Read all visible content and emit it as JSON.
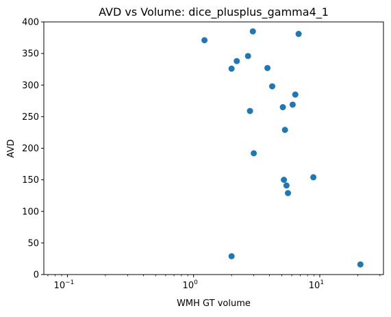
{
  "chart_data": {
    "type": "scatter",
    "title": "AVD vs Volume: dice_plusplus_gamma4_1",
    "xlabel": "WMH GT volume",
    "ylabel": "AVD",
    "xscale": "log",
    "xlim": [
      0.065,
      32
    ],
    "ylim": [
      0,
      400
    ],
    "xticks": [
      {
        "value": 0.1,
        "base": "10",
        "exp": "−1"
      },
      {
        "value": 1,
        "base": "10",
        "exp": "0"
      },
      {
        "value": 10,
        "base": "10",
        "exp": "1"
      }
    ],
    "yticks": [
      0,
      50,
      100,
      150,
      200,
      250,
      300,
      350,
      400
    ],
    "grid": false,
    "marker_color": "#1f77b4",
    "points": [
      {
        "x": 1.22,
        "y": 371
      },
      {
        "x": 2.0,
        "y": 326
      },
      {
        "x": 2.2,
        "y": 338
      },
      {
        "x": 2.0,
        "y": 29
      },
      {
        "x": 2.7,
        "y": 346
      },
      {
        "x": 2.8,
        "y": 259
      },
      {
        "x": 2.95,
        "y": 385
      },
      {
        "x": 3.0,
        "y": 192
      },
      {
        "x": 3.85,
        "y": 327
      },
      {
        "x": 4.2,
        "y": 298
      },
      {
        "x": 5.1,
        "y": 265
      },
      {
        "x": 5.2,
        "y": 150
      },
      {
        "x": 5.3,
        "y": 229
      },
      {
        "x": 5.45,
        "y": 141
      },
      {
        "x": 5.6,
        "y": 129
      },
      {
        "x": 6.1,
        "y": 269
      },
      {
        "x": 6.4,
        "y": 285
      },
      {
        "x": 6.8,
        "y": 381
      },
      {
        "x": 8.9,
        "y": 154
      },
      {
        "x": 21.0,
        "y": 16
      }
    ]
  }
}
